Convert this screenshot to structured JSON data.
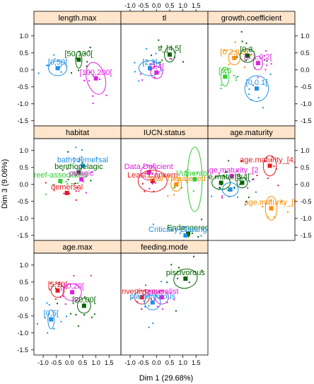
{
  "chart_data": {
    "type": "scatter",
    "xlabel": "Dim 1 (29.68%)",
    "ylabel": "Dim 3 (9.06%)",
    "xlim": [
      -1.35,
      1.95
    ],
    "ylim": [
      -1.65,
      1.35
    ],
    "x_ticks": [
      -1.0,
      -0.5,
      0.0,
      0.5,
      1.0,
      1.5
    ],
    "x_tick_labels": [
      "-1.0",
      "-0.5",
      "0.0",
      "0.5",
      "1.0",
      "1.5"
    ],
    "y_ticks": [
      -1.5,
      -1.0,
      -0.5,
      0.0,
      0.5,
      1.0
    ],
    "y_tick_labels": [
      "-1.5",
      "-1.0",
      "-0.5",
      "0.0",
      "0.5",
      "1.0"
    ],
    "panels": [
      {
        "title": "length.max",
        "categories": [
          {
            "label": "[0,50[",
            "x": -0.45,
            "y": 0.05,
            "color": "#1e8fe6",
            "ellipse": {
              "rx": 0.35,
              "ry": 0.22,
              "rot": 0
            }
          },
          {
            "label": "[50,100[",
            "x": 0.35,
            "y": 0.3,
            "color": "#006400",
            "ellipse": {
              "rx": 0.12,
              "ry": 0.25,
              "rot": 0
            }
          },
          {
            "label": "[100,200[",
            "x": 1.0,
            "y": -0.25,
            "color": "#e020e0",
            "ellipse": {
              "rx": 0.35,
              "ry": 0.48,
              "rot": -15
            }
          }
        ]
      },
      {
        "title": "tl",
        "categories": [
          {
            "label": "[2,3[",
            "x": -0.25,
            "y": 0.05,
            "color": "#1e8fe6",
            "ellipse": {
              "rx": 0.42,
              "ry": 0.22,
              "rot": 0
            }
          },
          {
            "label": "tl_[4,5[",
            "x": 0.5,
            "y": 0.45,
            "color": "#006400",
            "ellipse": {
              "rx": 0.2,
              "ry": 0.22,
              "rot": 0
            }
          },
          {
            "label": "[3,4[",
            "x": 0.0,
            "y": -0.08,
            "color": "#e020e0",
            "ellipse": {
              "rx": 0.22,
              "ry": 0.18,
              "rot": 0
            }
          }
        ]
      },
      {
        "title": "growth.coefficient",
        "categories": [
          {
            "label": "[0,0.1[",
            "x": 0.5,
            "y": -0.55,
            "color": "#1e8fe6",
            "ellipse": {
              "rx": 0.45,
              "ry": 0.38,
              "rot": 0
            }
          },
          {
            "label": "[0.1,0.2[",
            "x": 0.55,
            "y": 0.2,
            "color": "#e020e0",
            "ellipse": {
              "rx": 0.18,
              "ry": 0.2,
              "rot": 0
            }
          },
          {
            "label": "[0.2,0.3[",
            "x": -0.35,
            "y": 0.35,
            "color": "#ff8c00",
            "ellipse": {
              "rx": 0.22,
              "ry": 0.2,
              "rot": 0
            }
          },
          {
            "label": "[0.3,",
            "x": 0.15,
            "y": 0.42,
            "color": "#006400",
            "ellipse": {
              "rx": 0.28,
              "ry": 0.2,
              "rot": 0
            }
          },
          {
            "label": "[0.5",
            "x": -0.7,
            "y": -0.2,
            "color": "#32cd32",
            "ellipse": {
              "rx": 0.15,
              "ry": 0.28,
              "rot": 0
            }
          }
        ]
      },
      {
        "title": "habitat",
        "categories": [
          {
            "label": "bathydemersal",
            "x": 0.5,
            "y": 0.55,
            "color": "#1e8fe6",
            "ellipse": null
          },
          {
            "label": "benthopelagic",
            "x": 0.35,
            "y": 0.35,
            "color": "#006400",
            "ellipse": null
          },
          {
            "label": "pelagic",
            "x": 0.45,
            "y": 0.15,
            "color": "#e020e0",
            "ellipse": null
          },
          {
            "label": "reef-associated",
            "x": -0.35,
            "y": 0.1,
            "color": "#32cd32",
            "ellipse": null
          },
          {
            "label": "demersal",
            "x": -0.1,
            "y": -0.25,
            "color": "#e31a1c",
            "ellipse": null
          }
        ]
      },
      {
        "title": "IUCN.status",
        "categories": [
          {
            "label": "Data Deficient",
            "x": -0.3,
            "y": 0.35,
            "color": "#e020e0",
            "ellipse": {
              "rx": 0.3,
              "ry": 0.22,
              "rot": 0
            }
          },
          {
            "label": "Least Concern",
            "x": -0.15,
            "y": 0.1,
            "color": "#e31a1c",
            "ellipse": {
              "rx": 0.55,
              "ry": 0.32,
              "rot": 0
            }
          },
          {
            "label": "Near Threatened",
            "x": 0.75,
            "y": 0.0,
            "color": "#ff8c00",
            "ellipse": {
              "rx": 0.2,
              "ry": 0.2,
              "rot": 0
            }
          },
          {
            "label": "Vulnerable",
            "x": 1.45,
            "y": 0.15,
            "color": "#32cd32",
            "ellipse": {
              "rx": 0.28,
              "ry": 0.95,
              "rot": 0
            }
          },
          {
            "label": "Endangered",
            "x": 1.2,
            "y": -1.45,
            "color": "#006400",
            "ellipse": null
          },
          {
            "label": "Critically Endangered",
            "x": 1.1,
            "y": -1.5,
            "color": "#1e8fe6",
            "ellipse": null
          }
        ]
      },
      {
        "title": "age.maturity",
        "categories": [
          {
            "label": "age.maturity_[4,5",
            "x": 1.0,
            "y": 0.55,
            "color": "#e31a1c",
            "ellipse": {
              "rx": 0.25,
              "ry": 0.3,
              "rot": 0
            }
          },
          {
            "label": "age.maturity_[2",
            "x": -0.45,
            "y": 0.25,
            "color": "#e020e0",
            "ellipse": null
          },
          {
            "label": "age.maturity",
            "x": -0.85,
            "y": 0.05,
            "color": "#006400",
            "ellipse": {
              "rx": 0.35,
              "ry": 0.2,
              "rot": 0
            }
          },
          {
            "label": "[3,4[",
            "x": -0.05,
            "y": 0.05,
            "color": "#006400",
            "ellipse": {
              "rx": 0.2,
              "ry": 0.15,
              "rot": 0
            }
          },
          {
            "label": "age.maturity_[5",
            "x": 1.05,
            "y": -0.7,
            "color": "#ff8c00",
            "ellipse": {
              "rx": 0.22,
              "ry": 0.35,
              "rot": 0
            }
          },
          {
            "label": "",
            "x": -0.5,
            "y": -0.15,
            "color": "#1e8fe6",
            "ellipse": {
              "rx": 0.3,
              "ry": 0.2,
              "rot": 0
            }
          }
        ]
      },
      {
        "title": "age.max",
        "categories": [
          {
            "label": "[5,10[",
            "x": -0.45,
            "y": 0.25,
            "color": "#e31a1c",
            "ellipse": {
              "rx": 0.25,
              "ry": 0.2,
              "rot": 0
            }
          },
          {
            "label": "[10,20[",
            "x": 0.1,
            "y": 0.2,
            "color": "#e020e0",
            "ellipse": {
              "rx": 0.35,
              "ry": 0.25,
              "rot": 0
            }
          },
          {
            "label": "[20,00[",
            "x": 0.55,
            "y": -0.2,
            "color": "#006400",
            "ellipse": {
              "rx": 0.25,
              "ry": 0.22,
              "rot": 0
            }
          },
          {
            "label": "[0,5[",
            "x": -0.7,
            "y": -0.6,
            "color": "#1e8fe6",
            "ellipse": {
              "rx": 0.12,
              "ry": 0.28,
              "rot": 0
            }
          }
        ]
      },
      {
        "title": "feeding.mode",
        "categories": [
          {
            "label": "piscivorous",
            "x": 1.1,
            "y": 0.6,
            "color": "#006400",
            "ellipse": {
              "rx": 0.45,
              "ry": 0.28,
              "rot": -15
            }
          },
          {
            "label": "invertivorous",
            "x": -0.55,
            "y": 0.05,
            "color": "#e31a1c",
            "ellipse": {
              "rx": 0.28,
              "ry": 0.2,
              "rot": 0
            }
          },
          {
            "label": "generalist",
            "x": 0.2,
            "y": 0.05,
            "color": "#e020e0",
            "ellipse": {
              "rx": 0.25,
              "ry": 0.2,
              "rot": 0
            }
          },
          {
            "label": "planktivorous",
            "x": -0.15,
            "y": -0.1,
            "color": "#1e8fe6",
            "ellipse": {
              "rx": 0.3,
              "ry": 0.22,
              "rot": 0
            }
          }
        ]
      }
    ]
  }
}
